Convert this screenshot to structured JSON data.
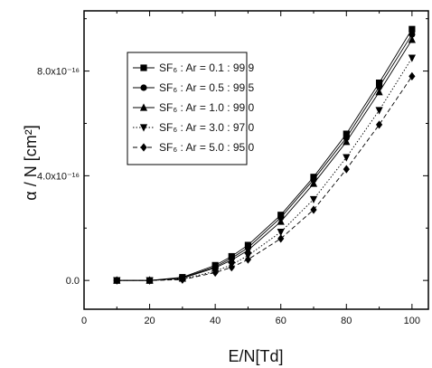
{
  "chart_data": {
    "type": "line",
    "xlabel": "E/N[Td]",
    "ylabel": "α / N  [cm²]",
    "xlim": [
      0,
      105
    ],
    "ylim": [
      -1.1e-16,
      1.03e-15
    ],
    "x_ticks": [
      {
        "value": 0,
        "label": "0"
      },
      {
        "value": 20,
        "label": "20"
      },
      {
        "value": 40,
        "label": "40"
      },
      {
        "value": 60,
        "label": "60"
      },
      {
        "value": 80,
        "label": "80"
      },
      {
        "value": 100,
        "label": "100"
      }
    ],
    "y_ticks": [
      {
        "value": 0,
        "label": "0.0"
      },
      {
        "value": 4e-16,
        "label": "4.0x10⁻¹⁶"
      },
      {
        "value": 8e-16,
        "label": "8.0x10⁻¹⁶"
      }
    ],
    "legend_position": "upper-left",
    "x": [
      10,
      20,
      30,
      40,
      45,
      50,
      60,
      70,
      80,
      90,
      100
    ],
    "series": [
      {
        "name": "SF₆ : Ar = 0.1 : 99.9",
        "marker": "square",
        "dash": "solid",
        "values": [
          0,
          0,
          1.2e-17,
          5.8e-17,
          9.2e-17,
          1.35e-16,
          2.5e-16,
          3.95e-16,
          5.6e-16,
          7.55e-16,
          9.6e-16
        ]
      },
      {
        "name": "SF₆ : Ar = 0.5 : 99.5",
        "marker": "circle",
        "dash": "solid",
        "values": [
          0,
          0,
          1e-17,
          5.2e-17,
          8.5e-17,
          1.25e-16,
          2.4e-16,
          3.85e-16,
          5.45e-16,
          7.4e-16,
          9.4e-16
        ]
      },
      {
        "name": "SF₆ : Ar = 1.0 : 99.0",
        "marker": "triangle-up",
        "dash": "solid",
        "values": [
          0,
          0,
          8e-18,
          4.8e-17,
          7.8e-17,
          1.15e-16,
          2.25e-16,
          3.7e-16,
          5.3e-16,
          7.2e-16,
          9.2e-16
        ]
      },
      {
        "name": "SF₆ : Ar = 3.0 : 97.0",
        "marker": "triangle-down",
        "dash": "dotted",
        "values": [
          0,
          0,
          5e-18,
          3.5e-17,
          6e-17,
          9.5e-17,
          1.85e-16,
          3.1e-16,
          4.7e-16,
          6.5e-16,
          8.5e-16
        ]
      },
      {
        "name": "SF₆ : Ar = 5.0 : 95.0",
        "marker": "diamond",
        "dash": "dashed",
        "values": [
          0,
          0,
          3e-18,
          3e-17,
          5e-17,
          8e-17,
          1.6e-16,
          2.7e-16,
          4.25e-16,
          5.95e-16,
          7.8e-16
        ]
      }
    ]
  }
}
